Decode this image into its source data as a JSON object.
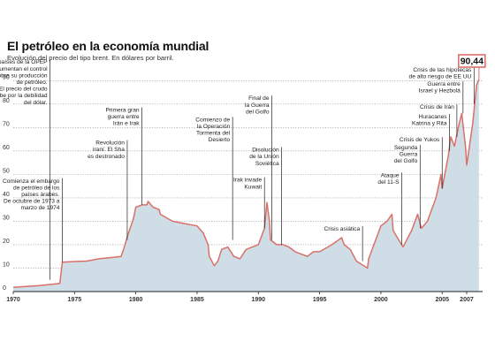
{
  "chart_data": {
    "type": "area",
    "title": "El petróleo en la economía mundial",
    "subtitle": "Evolución del precio del tipo brent. En dólares por barril.",
    "xlabel": "",
    "ylabel": "",
    "xlim": [
      1970,
      2008.3
    ],
    "ylim": [
      0,
      95
    ],
    "grid": true,
    "y_ticks": [
      0,
      10,
      20,
      30,
      40,
      50,
      60,
      70,
      80,
      90
    ],
    "x_ticks": [
      {
        "value": 1970,
        "label": "1970"
      },
      {
        "value": 1975,
        "label": "1975"
      },
      {
        "value": 1980,
        "label": "1980"
      },
      {
        "value": 1985,
        "label": "1985"
      },
      {
        "value": 1990,
        "label": "1990"
      },
      {
        "value": 1995,
        "label": "1995"
      },
      {
        "value": 2000,
        "label": "2000"
      },
      {
        "value": 2005,
        "label": "2005"
      },
      {
        "value": 2007,
        "label": "2007"
      }
    ],
    "colors": {
      "line": "#d9716a",
      "area": "#cfdde6",
      "grid": "#8f8f8f",
      "annotation_line": "#222222",
      "last_box": "#d9716a"
    },
    "series": [
      {
        "values": [
          [
            1970,
            1.8
          ],
          [
            1971,
            2.2
          ],
          [
            1972,
            2.5
          ],
          [
            1973,
            3.0
          ],
          [
            1973.8,
            3.5
          ],
          [
            1974,
            12.5
          ],
          [
            1975,
            12.8
          ],
          [
            1976,
            13.0
          ],
          [
            1977,
            14.0
          ],
          [
            1978,
            14.5
          ],
          [
            1978.8,
            15.0
          ],
          [
            1979,
            18
          ],
          [
            1979.4,
            25
          ],
          [
            1979.8,
            31
          ],
          [
            1980,
            36
          ],
          [
            1980.5,
            37
          ],
          [
            1980.9,
            37
          ],
          [
            1981,
            38.5
          ],
          [
            1981.4,
            36
          ],
          [
            1981.9,
            35
          ],
          [
            1982,
            33
          ],
          [
            1983,
            30
          ],
          [
            1984,
            29
          ],
          [
            1985,
            28
          ],
          [
            1985.5,
            25
          ],
          [
            1985.9,
            20
          ],
          [
            1986,
            15
          ],
          [
            1986.4,
            11
          ],
          [
            1986.7,
            13
          ],
          [
            1987,
            18
          ],
          [
            1987.5,
            19
          ],
          [
            1988,
            15
          ],
          [
            1988.5,
            14
          ],
          [
            1989,
            18
          ],
          [
            1989.5,
            19
          ],
          [
            1990,
            20
          ],
          [
            1990.5,
            27
          ],
          [
            1990.7,
            38
          ],
          [
            1990.9,
            30
          ],
          [
            1991,
            22
          ],
          [
            1991.5,
            20
          ],
          [
            1992,
            20
          ],
          [
            1992.5,
            19
          ],
          [
            1993,
            17
          ],
          [
            1993.5,
            16
          ],
          [
            1994,
            15
          ],
          [
            1994.5,
            17
          ],
          [
            1995,
            17
          ],
          [
            1996,
            20
          ],
          [
            1996.8,
            23
          ],
          [
            1997,
            20
          ],
          [
            1997.5,
            18
          ],
          [
            1998,
            13
          ],
          [
            1998.6,
            11
          ],
          [
            1998.9,
            10
          ],
          [
            1999,
            14
          ],
          [
            1999.5,
            21
          ],
          [
            2000,
            28
          ],
          [
            2000.5,
            30
          ],
          [
            2000.9,
            33
          ],
          [
            2001,
            26
          ],
          [
            2001.8,
            19
          ],
          [
            2002,
            21
          ],
          [
            2002.5,
            26
          ],
          [
            2003,
            33
          ],
          [
            2003.3,
            27
          ],
          [
            2003.8,
            30
          ],
          [
            2004,
            33
          ],
          [
            2004.5,
            40
          ],
          [
            2004.9,
            50
          ],
          [
            2005,
            44
          ],
          [
            2005.5,
            58
          ],
          [
            2005.7,
            66
          ],
          [
            2006,
            62
          ],
          [
            2006.4,
            72
          ],
          [
            2006.6,
            76
          ],
          [
            2006.9,
            62
          ],
          [
            2007,
            54
          ],
          [
            2007.5,
            72
          ],
          [
            2007.8,
            88
          ],
          [
            2008,
            90.44
          ]
        ]
      }
    ],
    "last_value_label": "90,44",
    "annotations": [
      {
        "x": 1973,
        "y": 5,
        "level": 80,
        "lines": [
          "Los países de la OPEP",
          "aumentan el control",
          "sobre su producción",
          "de petróleo.",
          "El precio del crudo",
          "sube por la debilidad",
          "del dólar."
        ]
      },
      {
        "x": 1974,
        "y": 12.5,
        "level": 35,
        "lines": [
          "Comienza el embargo",
          "de petróleo de los",
          "países árabes.",
          "De octubre de 1973 a",
          "marzo de 1974"
        ]
      },
      {
        "x": 1980.5,
        "y": 37,
        "level": 71,
        "lines": [
          "Primera gran",
          "guerra entre",
          "Irán e Irak"
        ]
      },
      {
        "x": 1979.3,
        "y": 22,
        "level": 57,
        "lines": [
          "Revolución",
          "iraní. El Sha",
          "es destronado"
        ]
      },
      {
        "x": 1990.5,
        "y": 27,
        "level": 44,
        "lines": [
          "Irak invade",
          "Kuwait"
        ]
      },
      {
        "x": 1987.9,
        "y": 22,
        "level": 64,
        "lines": [
          "Comienzo de",
          "la Operación",
          "Tormenta del",
          "Desierto"
        ]
      },
      {
        "x": 1991.1,
        "y": 22,
        "level": 76,
        "lines": [
          "Final de",
          "la Guerra",
          "del Golfo"
        ]
      },
      {
        "x": 1991.9,
        "y": 20,
        "level": 54,
        "lines": [
          "Disolución",
          "de la Unión",
          "Soviética"
        ]
      },
      {
        "x": 1998.5,
        "y": 13,
        "level": 26,
        "lines": [
          "Crisis asiática"
        ]
      },
      {
        "x": 2001.7,
        "y": 20,
        "level": 46,
        "lines": [
          "Ataque",
          "del 11-S"
        ]
      },
      {
        "x": 2003.2,
        "y": 27,
        "level": 55,
        "lines": [
          "Segunda",
          "Guerra",
          "del Golfo"
        ]
      },
      {
        "x": 2005.0,
        "y": 44,
        "level": 64,
        "lines": [
          "Crisis de Yukos"
        ]
      },
      {
        "x": 2005.6,
        "y": 60,
        "level": 71,
        "lines": [
          "Huracanes",
          "Katrina y Rita"
        ]
      },
      {
        "x": 2006.2,
        "y": 66,
        "level": 78,
        "lines": [
          "Crisis de Irán"
        ]
      },
      {
        "x": 2006.7,
        "y": 76,
        "level": 85,
        "lines": [
          "Guerra entre",
          "Israel y Hezbolá"
        ]
      },
      {
        "x": 2007.6,
        "y": 80,
        "level": 91,
        "lines": [
          "Crisis de las hipotecas",
          "de alto riesgo de EE UU"
        ]
      }
    ]
  }
}
